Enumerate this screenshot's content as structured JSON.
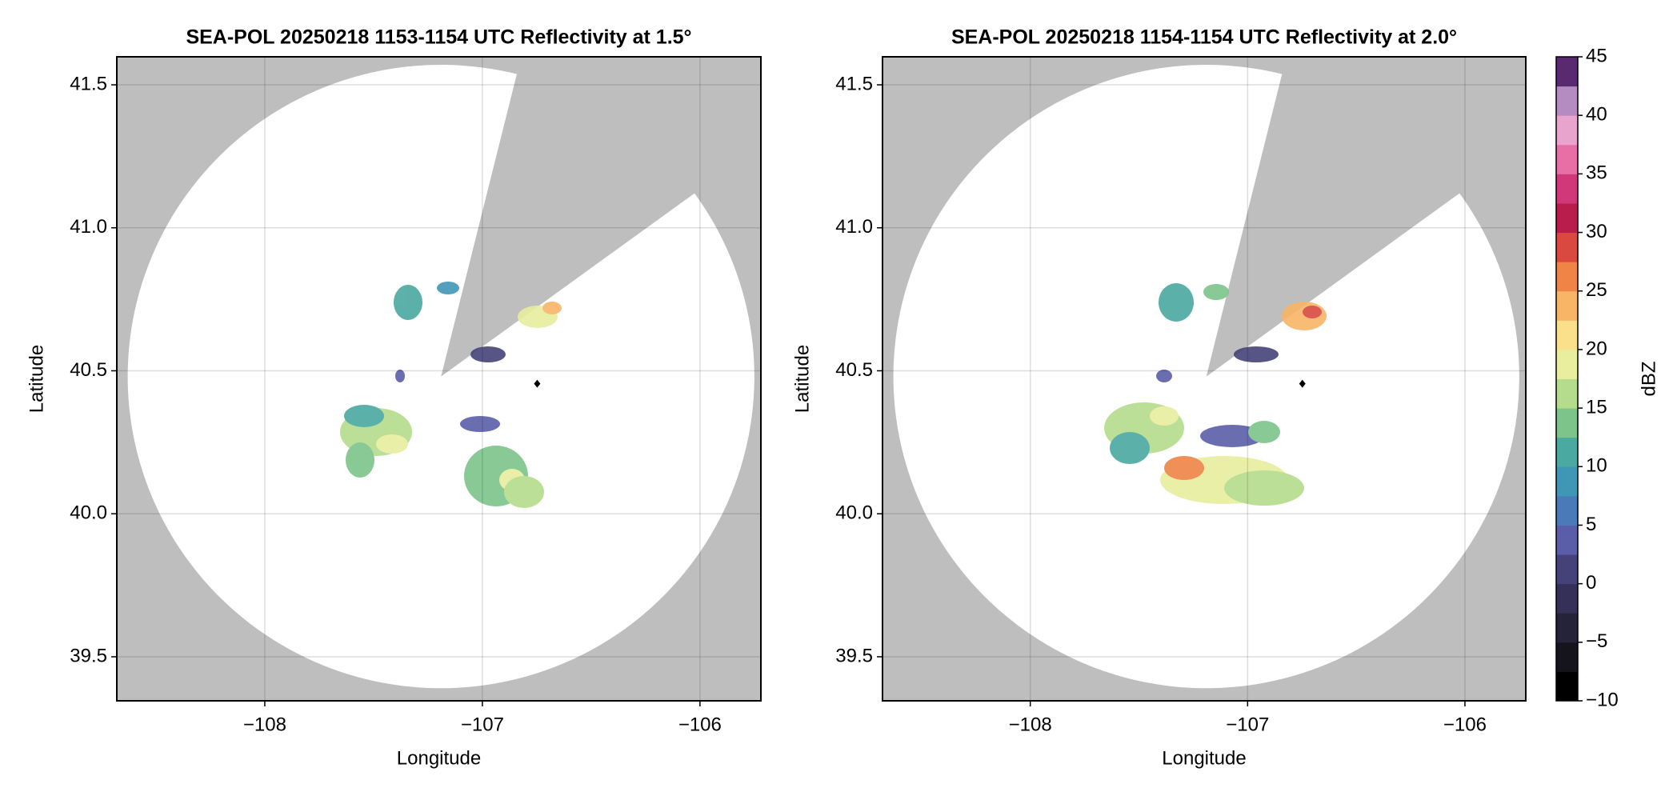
{
  "chart_data": [
    {
      "type": "radar",
      "title": "SEA-POL 20250218 1153-1154 UTC Reflectivity at 1.5°",
      "xlabel": "Longitude",
      "ylabel": "Latitude",
      "xlim": [
        -108.68,
        -105.72
      ],
      "ylim": [
        39.346,
        41.598
      ],
      "xticks": [
        {
          "value": -108,
          "label": "−108"
        },
        {
          "value": -107,
          "label": "−107"
        },
        {
          "value": -106,
          "label": "−106"
        }
      ],
      "yticks": [
        39.5,
        {
          "value": 40,
          "label": "40.0"
        },
        40.5,
        {
          "value": 41,
          "label": "41.0"
        },
        41.5
      ],
      "grid": true,
      "background": "#bebebe",
      "coverage": {
        "center": [
          -107.19,
          40.48
        ],
        "radius": [
          1.44,
          1.09
        ],
        "blocked_azimuths": [
          14,
          54
        ]
      },
      "marker": [
        -106.748,
        40.455
      ]
    },
    {
      "type": "radar",
      "title": "SEA-POL 20250218 1154-1154 UTC Reflectivity at 2.0°",
      "xlabel": "Longitude",
      "ylabel": "Latitude",
      "xlim": [
        -108.68,
        -105.72
      ],
      "ylim": [
        39.346,
        41.598
      ],
      "xticks": [
        {
          "value": -108,
          "label": "−108"
        },
        {
          "value": -107,
          "label": "−107"
        },
        {
          "value": -106,
          "label": "−106"
        }
      ],
      "yticks": [
        39.5,
        {
          "value": 40,
          "label": "40.0"
        },
        40.5,
        {
          "value": 41,
          "label": "41.0"
        },
        41.5
      ],
      "grid": true,
      "background": "#bebebe",
      "coverage": {
        "center": [
          -107.19,
          40.48
        ],
        "radius": [
          1.44,
          1.09
        ],
        "blocked_azimuths": [
          14,
          54
        ]
      },
      "marker": [
        -106.748,
        40.455
      ]
    }
  ],
  "colorbar": {
    "label": "dBZ",
    "lim": [
      -10,
      45
    ],
    "ticks": [
      {
        "value": -10,
        "label": "−10"
      },
      {
        "value": -5,
        "label": "−5"
      },
      0,
      5,
      10,
      15,
      20,
      25,
      30,
      35,
      40,
      45
    ],
    "colors": [
      "#000000",
      "#15141c",
      "#25233a",
      "#343058",
      "#45427a",
      "#5a5ea8",
      "#4a7ab8",
      "#3f96b5",
      "#4aa9a0",
      "#7cc48a",
      "#b5dc8c",
      "#e8ee9e",
      "#fbe08c",
      "#f8b565",
      "#ee8446",
      "#d9493f",
      "#b91d4c",
      "#d0387a",
      "#e86ea6",
      "#e8a4cc",
      "#b48cc2",
      "#5a2a70"
    ]
  }
}
